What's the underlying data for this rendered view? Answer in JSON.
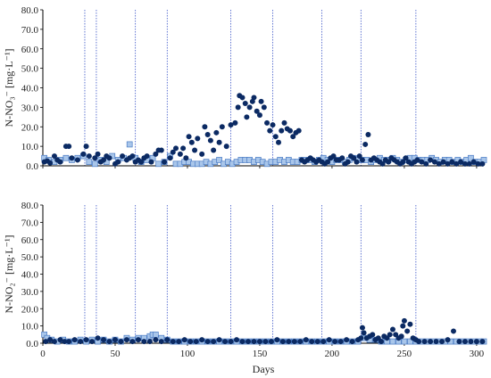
{
  "chart_data": [
    {
      "type": "scatter",
      "ylabel": "N-NO₃⁻ [mg·L⁻¹]",
      "xlabel": "",
      "xlim": [
        0,
        305
      ],
      "ylim": [
        0,
        80
      ],
      "yticks": [
        "0.0",
        "10.0",
        "20.0",
        "30.0",
        "40.0",
        "50.0",
        "60.0",
        "70.0",
        "80.0"
      ],
      "vlines": [
        29,
        37,
        64,
        86,
        130,
        159,
        193,
        220,
        258
      ],
      "series": [
        {
          "marker": "circle",
          "color": "#0b2a63",
          "x": [
            1,
            3,
            5,
            8,
            10,
            12,
            16,
            18,
            20,
            24,
            28,
            30,
            32,
            36,
            38,
            40,
            42,
            44,
            46,
            50,
            52,
            55,
            58,
            60,
            62,
            64,
            66,
            68,
            70,
            72,
            75,
            78,
            80,
            82,
            84,
            88,
            90,
            92,
            95,
            97,
            99,
            101,
            103,
            105,
            107,
            110,
            112,
            114,
            116,
            118,
            120,
            122,
            124,
            127,
            130,
            133,
            135,
            136,
            138,
            140,
            141,
            143,
            145,
            146,
            148,
            150,
            151,
            153,
            155,
            157,
            159,
            161,
            163,
            165,
            167,
            169,
            171,
            173,
            175,
            177,
            179,
            181,
            183,
            185,
            187,
            189,
            191,
            193,
            195,
            197,
            199,
            201,
            203,
            205,
            207,
            209,
            211,
            213,
            215,
            217,
            219,
            221,
            223,
            225,
            227,
            229,
            231,
            233,
            235,
            237,
            239,
            241,
            243,
            245,
            247,
            249,
            251,
            253,
            255,
            257,
            259,
            262,
            265,
            268,
            271,
            274,
            277,
            280,
            283,
            286,
            289,
            292,
            295,
            298,
            301,
            304
          ],
          "y": [
            2,
            2.5,
            1.5,
            5,
            3,
            2,
            10,
            10,
            4,
            3,
            6,
            10,
            5,
            4,
            6,
            2,
            3,
            5,
            4,
            1,
            2,
            5,
            3,
            4,
            5,
            2,
            3,
            2,
            4,
            5,
            2,
            6,
            8,
            8,
            2,
            4,
            7,
            9,
            6,
            9,
            4,
            15,
            12,
            8,
            14,
            6,
            20,
            16,
            13,
            8,
            17,
            12,
            20,
            10,
            21,
            22,
            30,
            36,
            35,
            32,
            25,
            30,
            33,
            35,
            28,
            26,
            33,
            30,
            22,
            18,
            21,
            15,
            12,
            18,
            22,
            19,
            18,
            15,
            17,
            18,
            3,
            2,
            3,
            4,
            3,
            2,
            3,
            2,
            1,
            2,
            4,
            5,
            3,
            3,
            4,
            1,
            2,
            5,
            4,
            2,
            5,
            3,
            11,
            16,
            3,
            4,
            3,
            2,
            1,
            3,
            2,
            4,
            3,
            2,
            1,
            2,
            4,
            2,
            1,
            2,
            3,
            2,
            1,
            3,
            2,
            1,
            2,
            1,
            2,
            1,
            2,
            1,
            1,
            2,
            1,
            1
          ]
        },
        {
          "marker": "square",
          "color": "#a9c6ea",
          "x": [
            1,
            4,
            8,
            12,
            16,
            20,
            24,
            28,
            32,
            36,
            40,
            44,
            48,
            52,
            56,
            60,
            64,
            68,
            72,
            76,
            80,
            84,
            88,
            92,
            95,
            98,
            101,
            104,
            107,
            110,
            113,
            116,
            119,
            122,
            125,
            128,
            131,
            134,
            137,
            140,
            143,
            146,
            149,
            152,
            155,
            158,
            161,
            164,
            167,
            170,
            173,
            176,
            179,
            182,
            185,
            188,
            191,
            194,
            197,
            200,
            203,
            206,
            209,
            212,
            215,
            218,
            221,
            224,
            227,
            230,
            233,
            236,
            239,
            242,
            245,
            248,
            251,
            254,
            257,
            260,
            263,
            266,
            269,
            272,
            275,
            278,
            281,
            284,
            287,
            290,
            293,
            296,
            299,
            302,
            305
          ],
          "y": [
            4,
            3,
            2,
            3,
            4,
            3,
            4,
            5,
            2,
            1,
            3,
            2,
            5,
            3,
            4,
            11,
            4,
            2,
            3,
            4,
            1,
            2,
            5,
            1,
            1,
            2,
            2,
            1,
            1,
            1,
            2,
            1,
            2,
            3,
            1,
            2,
            1,
            2,
            3,
            3,
            3,
            2,
            3,
            2,
            1,
            2,
            2,
            3,
            2,
            3,
            2,
            2,
            3,
            3,
            3,
            2,
            3,
            4,
            3,
            2,
            3,
            3,
            2,
            3,
            4,
            3,
            3,
            3,
            2,
            3,
            4,
            3,
            3,
            4,
            3,
            2,
            3,
            4,
            4,
            3,
            3,
            3,
            4,
            3,
            2,
            3,
            3,
            2,
            3,
            2,
            3,
            4,
            2,
            2,
            3
          ]
        }
      ]
    },
    {
      "type": "scatter",
      "ylabel": "N-NO₂⁻ [mg·L⁻¹]",
      "xlabel": "Days",
      "xlim": [
        0,
        305
      ],
      "ylim": [
        0,
        80
      ],
      "yticks": [
        "0.0",
        "10.0",
        "20.0",
        "30.0",
        "40.0",
        "50.0",
        "60.0",
        "70.0",
        "80.0"
      ],
      "xticks": [
        "0",
        "50",
        "100",
        "150",
        "200",
        "250",
        "300"
      ],
      "vlines": [
        29,
        37,
        64,
        86,
        130,
        159,
        193,
        220,
        258
      ],
      "series": [
        {
          "marker": "circle",
          "color": "#0b2a63",
          "x": [
            2,
            5,
            8,
            12,
            15,
            18,
            22,
            26,
            30,
            34,
            38,
            42,
            46,
            50,
            54,
            58,
            62,
            66,
            70,
            74,
            78,
            82,
            86,
            90,
            94,
            98,
            102,
            106,
            110,
            114,
            118,
            122,
            126,
            130,
            134,
            138,
            142,
            146,
            150,
            154,
            158,
            162,
            166,
            170,
            174,
            178,
            182,
            186,
            190,
            194,
            198,
            202,
            206,
            210,
            214,
            218,
            220,
            221,
            222,
            224,
            226,
            228,
            230,
            232,
            234,
            236,
            238,
            240,
            242,
            244,
            246,
            248,
            249,
            250,
            252,
            254,
            256,
            258,
            260,
            264,
            268,
            272,
            276,
            280,
            284,
            288,
            292,
            296,
            300,
            304
          ],
          "y": [
            1,
            2,
            1,
            2,
            1,
            1,
            2,
            1,
            2,
            1,
            3,
            2,
            1,
            2,
            1,
            2,
            1,
            2,
            1,
            1,
            2,
            1,
            2,
            1,
            1,
            2,
            1,
            1,
            2,
            1,
            1,
            2,
            1,
            1,
            2,
            1,
            1,
            1,
            1,
            1,
            1,
            2,
            1,
            1,
            1,
            1,
            2,
            1,
            1,
            1,
            2,
            1,
            1,
            2,
            1,
            2,
            3,
            9,
            6,
            3,
            4,
            5,
            2,
            3,
            1,
            4,
            3,
            5,
            8,
            5,
            3,
            4,
            10,
            13,
            7,
            11,
            3,
            2,
            1,
            1,
            1,
            1,
            1,
            2,
            7,
            1,
            1,
            1,
            1,
            1
          ]
        },
        {
          "marker": "square",
          "color": "#a9c6ea",
          "x": [
            1,
            3,
            6,
            10,
            14,
            18,
            22,
            26,
            30,
            34,
            38,
            42,
            46,
            50,
            54,
            58,
            62,
            66,
            70,
            74,
            76,
            78,
            82,
            86,
            90,
            94,
            98,
            102,
            106,
            110,
            114,
            118,
            122,
            126,
            130,
            134,
            138,
            142,
            146,
            150,
            154,
            158,
            162,
            166,
            170,
            174,
            178,
            182,
            186,
            190,
            194,
            198,
            202,
            206,
            210,
            214,
            218,
            222,
            226,
            230,
            234,
            238,
            242,
            246,
            250,
            254,
            258,
            262,
            266,
            270,
            274,
            278,
            282,
            286,
            290,
            294,
            298,
            302,
            305
          ],
          "y": [
            5,
            3,
            2,
            1,
            2,
            1,
            1,
            2,
            1,
            2,
            1,
            2,
            1,
            2,
            1,
            3,
            2,
            3,
            3,
            4,
            5,
            5,
            3,
            2,
            1,
            1,
            1,
            1,
            1,
            1,
            1,
            1,
            1,
            1,
            1,
            1,
            1,
            1,
            1,
            1,
            1,
            1,
            1,
            1,
            1,
            1,
            1,
            1,
            1,
            1,
            1,
            1,
            1,
            1,
            1,
            1,
            1,
            3,
            2,
            2,
            1,
            1,
            1,
            1,
            1,
            1,
            1,
            1,
            1,
            1,
            1,
            1,
            1,
            1,
            1,
            1,
            1,
            1,
            1
          ]
        }
      ]
    }
  ]
}
